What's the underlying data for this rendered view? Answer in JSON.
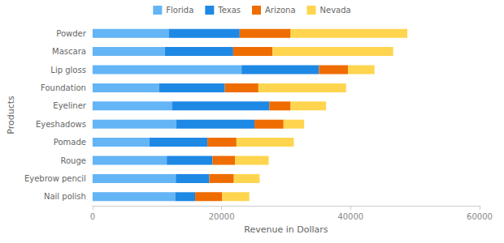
{
  "chart_data": {
    "type": "bar",
    "orientation": "horizontal",
    "stacked": true,
    "x_label": "Revenue in Dollars",
    "y_label": "Products",
    "categories": [
      "Powder",
      "Mascara",
      "Lip gloss",
      "Foundation",
      "Eyeliner",
      "Eyeshadows",
      "Pomade",
      "Rouge",
      "Eyebrow pencil",
      "Nail polish"
    ],
    "series": [
      {
        "name": "Florida",
        "color": "#64b5f6",
        "values": [
          11800,
          11200,
          23100,
          10300,
          12300,
          13000,
          8800,
          11500,
          12900,
          12800
        ]
      },
      {
        "name": "Texas",
        "color": "#1e88e5",
        "values": [
          11000,
          10600,
          12000,
          10200,
          15100,
          12100,
          9000,
          7100,
          5200,
          3100
        ]
      },
      {
        "name": "Arizona",
        "color": "#ef6c00",
        "values": [
          7900,
          6100,
          4500,
          5200,
          3300,
          4500,
          4500,
          3500,
          3800,
          4200
        ]
      },
      {
        "name": "Nevada",
        "color": "#ffd54f",
        "values": [
          18100,
          18700,
          4100,
          13600,
          5500,
          3200,
          8900,
          5200,
          4000,
          4200
        ]
      }
    ],
    "xlim": [
      0,
      60000
    ],
    "xticks": [
      0,
      20000,
      40000,
      60000
    ],
    "grid": false,
    "legend": "top"
  }
}
